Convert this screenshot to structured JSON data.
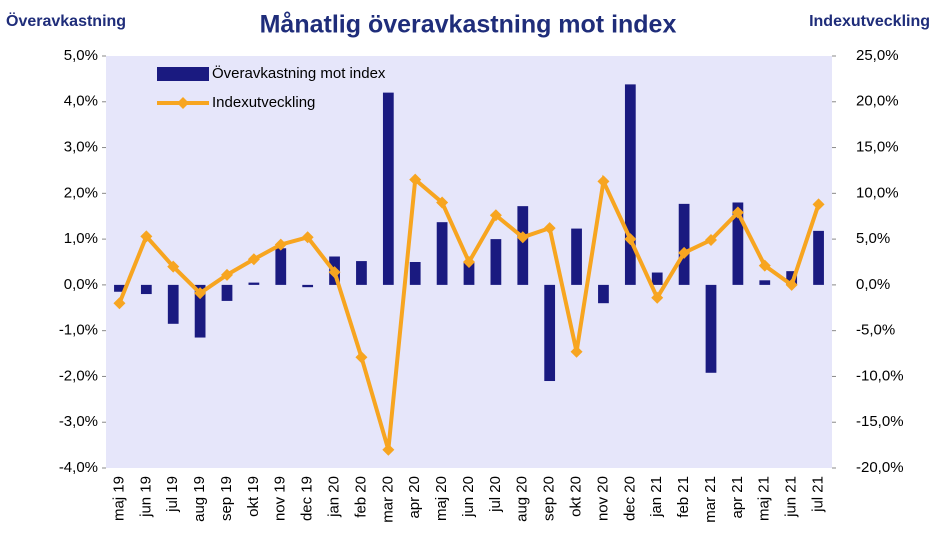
{
  "chart_data": {
    "type": "bar_line",
    "title": "Månatlig överavkastning mot index",
    "y_label": "Överavkastning",
    "y2_label": "Indexutveckling",
    "categories": [
      "maj 19",
      "jun 19",
      "jul 19",
      "aug 19",
      "sep 19",
      "okt 19",
      "nov 19",
      "dec 19",
      "jan 20",
      "feb 20",
      "mar 20",
      "apr 20",
      "maj 20",
      "jun 20",
      "jul 20",
      "aug 20",
      "sep 20",
      "okt 20",
      "nov 20",
      "dec 20",
      "jan 21",
      "feb 21",
      "mar 21",
      "apr 21",
      "maj 21",
      "jun 21",
      "jul 21"
    ],
    "series": [
      {
        "name": "Överavkastning mot index",
        "type": "bar",
        "color": "#1a1a80",
        "values": [
          -0.15,
          -0.2,
          -0.85,
          -1.15,
          -0.35,
          0.05,
          0.8,
          -0.05,
          0.62,
          0.52,
          4.2,
          0.5,
          1.37,
          0.5,
          1.0,
          1.72,
          -2.1,
          1.23,
          -0.4,
          4.38,
          0.27,
          1.77,
          -1.92,
          1.8,
          0.1,
          0.3,
          1.18
        ]
      },
      {
        "name": "Indexutveckling",
        "type": "line",
        "axis": "y2",
        "color": "#f7a520",
        "values": [
          -2.0,
          5.3,
          2.0,
          -0.9,
          1.1,
          2.8,
          4.4,
          5.2,
          1.4,
          -7.9,
          -18.0,
          11.5,
          9.0,
          2.5,
          7.6,
          5.2,
          6.2,
          -7.3,
          11.3,
          5.0,
          -1.4,
          3.5,
          4.9,
          7.9,
          2.1,
          0.0,
          8.8
        ]
      }
    ],
    "ylim": [
      -4,
      5
    ],
    "yticks": [
      {
        "value": -4,
        "label": "-4,0%"
      },
      {
        "value": -3,
        "label": "-3,0%"
      },
      {
        "value": -2,
        "label": "-2,0%"
      },
      {
        "value": -1,
        "label": "-1,0%"
      },
      {
        "value": 0,
        "label": "0,0%"
      },
      {
        "value": 1,
        "label": "1,0%"
      },
      {
        "value": 2,
        "label": "2,0%"
      },
      {
        "value": 3,
        "label": "3,0%"
      },
      {
        "value": 4,
        "label": "4,0%"
      },
      {
        "value": 5,
        "label": "5,0%"
      }
    ],
    "y2lim": [
      -20,
      25
    ],
    "y2ticks": [
      {
        "value": -20,
        "label": "-20,0%"
      },
      {
        "value": -15,
        "label": "-15,0%"
      },
      {
        "value": -10,
        "label": "-10,0%"
      },
      {
        "value": -5,
        "label": "-5,0%"
      },
      {
        "value": 0,
        "label": "0,0%"
      },
      {
        "value": 5,
        "label": "5,0%"
      },
      {
        "value": 10,
        "label": "10,0%"
      },
      {
        "value": 15,
        "label": "15,0%"
      },
      {
        "value": 20,
        "label": "20,0%"
      },
      {
        "value": 25,
        "label": "25,0%"
      }
    ],
    "plot_background": "#e6e6fa"
  }
}
